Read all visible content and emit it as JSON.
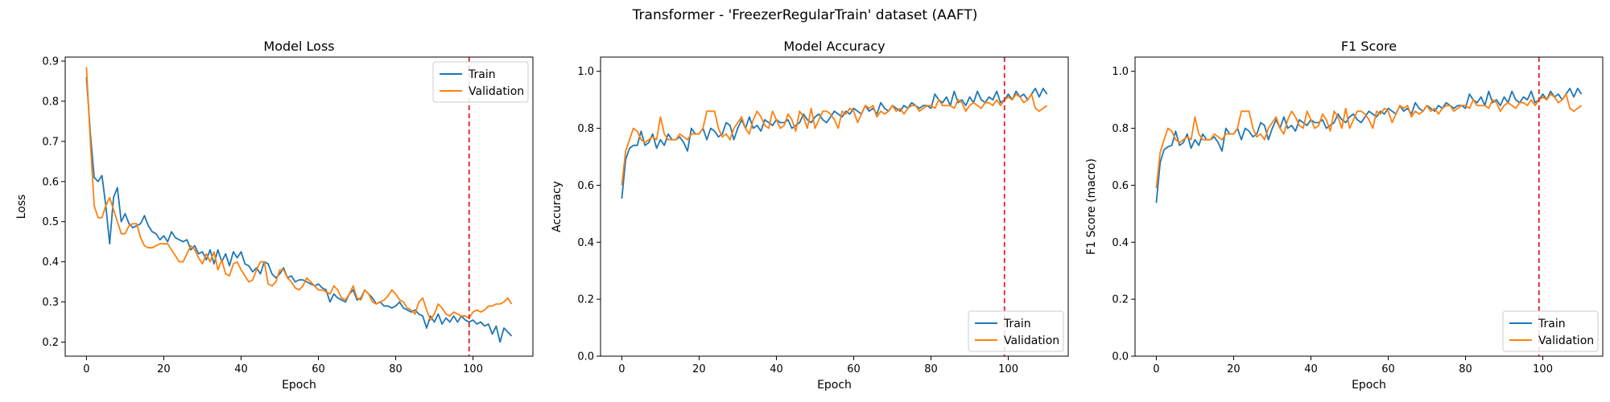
{
  "suptitle": "Transformer - 'FreezerRegularTrain' dataset (AAFT)",
  "colors": {
    "train": "#1f77b4",
    "validation": "#ff7f0e",
    "marker": "#d62728"
  },
  "chart_data": [
    {
      "type": "line",
      "title": "Model Loss",
      "xlabel": "Epoch",
      "ylabel": "Loss",
      "xlim": [
        -5.5,
        115.5
      ],
      "ylim": [
        0.165,
        0.91
      ],
      "xticks": [
        0,
        20,
        40,
        60,
        80,
        100
      ],
      "yticks": [
        0.2,
        0.3,
        0.4,
        0.5,
        0.6,
        0.7,
        0.8,
        0.9
      ],
      "ytick_labels": [
        "0.2",
        "0.3",
        "0.4",
        "0.5",
        "0.6",
        "0.7",
        "0.8",
        "0.9"
      ],
      "vline_x": 99,
      "legend_loc": "upper-right",
      "series": [
        {
          "name": "Train",
          "values": [
            0.86,
            0.72,
            0.61,
            0.6,
            0.615,
            0.54,
            0.445,
            0.56,
            0.585,
            0.5,
            0.52,
            0.495,
            0.485,
            0.49,
            0.495,
            0.515,
            0.49,
            0.475,
            0.47,
            0.455,
            0.465,
            0.45,
            0.475,
            0.46,
            0.455,
            0.45,
            0.455,
            0.43,
            0.44,
            0.42,
            0.425,
            0.405,
            0.43,
            0.395,
            0.43,
            0.4,
            0.42,
            0.39,
            0.425,
            0.41,
            0.425,
            0.395,
            0.39,
            0.375,
            0.385,
            0.37,
            0.4,
            0.395,
            0.37,
            0.36,
            0.37,
            0.385,
            0.36,
            0.365,
            0.35,
            0.355,
            0.355,
            0.35,
            0.345,
            0.34,
            0.345,
            0.335,
            0.33,
            0.3,
            0.32,
            0.31,
            0.305,
            0.3,
            0.32,
            0.33,
            0.305,
            0.31,
            0.33,
            0.32,
            0.31,
            0.295,
            0.3,
            0.29,
            0.29,
            0.285,
            0.29,
            0.3,
            0.285,
            0.28,
            0.275,
            0.28,
            0.27,
            0.265,
            0.235,
            0.265,
            0.25,
            0.27,
            0.245,
            0.26,
            0.25,
            0.265,
            0.25,
            0.265,
            0.255,
            0.25,
            0.255,
            0.245,
            0.25,
            0.24,
            0.245,
            0.22,
            0.24,
            0.2,
            0.235,
            0.225,
            0.215
          ]
        },
        {
          "name": "Validation",
          "values": [
            0.885,
            0.7,
            0.54,
            0.51,
            0.51,
            0.54,
            0.56,
            0.53,
            0.5,
            0.47,
            0.47,
            0.49,
            0.495,
            0.495,
            0.46,
            0.44,
            0.435,
            0.435,
            0.44,
            0.445,
            0.445,
            0.445,
            0.43,
            0.415,
            0.4,
            0.4,
            0.42,
            0.44,
            0.43,
            0.41,
            0.395,
            0.42,
            0.4,
            0.425,
            0.38,
            0.405,
            0.37,
            0.365,
            0.395,
            0.4,
            0.38,
            0.365,
            0.35,
            0.355,
            0.38,
            0.4,
            0.4,
            0.345,
            0.34,
            0.35,
            0.38,
            0.38,
            0.36,
            0.35,
            0.335,
            0.33,
            0.34,
            0.36,
            0.35,
            0.34,
            0.33,
            0.33,
            0.325,
            0.32,
            0.34,
            0.33,
            0.31,
            0.305,
            0.32,
            0.34,
            0.31,
            0.305,
            0.33,
            0.32,
            0.3,
            0.295,
            0.3,
            0.305,
            0.315,
            0.33,
            0.32,
            0.305,
            0.3,
            0.285,
            0.28,
            0.27,
            0.3,
            0.31,
            0.28,
            0.255,
            0.27,
            0.295,
            0.285,
            0.27,
            0.265,
            0.275,
            0.27,
            0.265,
            0.265,
            0.26,
            0.275,
            0.28,
            0.275,
            0.28,
            0.29,
            0.29,
            0.295,
            0.295,
            0.3,
            0.31,
            0.295
          ]
        }
      ]
    },
    {
      "type": "line",
      "title": "Model Accuracy",
      "xlabel": "Epoch",
      "ylabel": "Accuracy",
      "xlim": [
        -5.5,
        115.5
      ],
      "ylim": [
        0.0,
        1.05
      ],
      "xticks": [
        0,
        20,
        40,
        60,
        80,
        100
      ],
      "yticks": [
        0.0,
        0.2,
        0.4,
        0.6,
        0.8,
        1.0
      ],
      "ytick_labels": [
        "0.0",
        "0.2",
        "0.4",
        "0.6",
        "0.8",
        "1.0"
      ],
      "vline_x": 99,
      "legend_loc": "lower-right",
      "series": [
        {
          "name": "Train",
          "values": [
            0.553,
            0.69,
            0.73,
            0.74,
            0.74,
            0.79,
            0.74,
            0.75,
            0.78,
            0.73,
            0.76,
            0.74,
            0.78,
            0.76,
            0.76,
            0.77,
            0.75,
            0.72,
            0.8,
            0.78,
            0.78,
            0.8,
            0.76,
            0.8,
            0.79,
            0.77,
            0.78,
            0.82,
            0.81,
            0.76,
            0.8,
            0.83,
            0.8,
            0.84,
            0.8,
            0.81,
            0.79,
            0.83,
            0.82,
            0.81,
            0.83,
            0.82,
            0.82,
            0.83,
            0.8,
            0.81,
            0.82,
            0.85,
            0.83,
            0.82,
            0.84,
            0.85,
            0.83,
            0.82,
            0.84,
            0.86,
            0.85,
            0.84,
            0.86,
            0.85,
            0.87,
            0.86,
            0.85,
            0.88,
            0.86,
            0.87,
            0.85,
            0.89,
            0.87,
            0.86,
            0.88,
            0.87,
            0.86,
            0.88,
            0.87,
            0.89,
            0.88,
            0.87,
            0.88,
            0.88,
            0.87,
            0.92,
            0.9,
            0.89,
            0.91,
            0.88,
            0.93,
            0.89,
            0.9,
            0.88,
            0.91,
            0.89,
            0.93,
            0.9,
            0.89,
            0.91,
            0.9,
            0.93,
            0.89,
            0.9,
            0.92,
            0.9,
            0.93,
            0.91,
            0.92,
            0.9,
            0.92,
            0.94,
            0.91,
            0.94,
            0.92
          ]
        },
        {
          "name": "Validation",
          "values": [
            0.6,
            0.72,
            0.76,
            0.8,
            0.79,
            0.76,
            0.75,
            0.76,
            0.77,
            0.76,
            0.84,
            0.78,
            0.76,
            0.76,
            0.76,
            0.78,
            0.77,
            0.76,
            0.78,
            0.78,
            0.78,
            0.8,
            0.86,
            0.86,
            0.86,
            0.8,
            0.77,
            0.78,
            0.76,
            0.8,
            0.82,
            0.84,
            0.8,
            0.78,
            0.83,
            0.86,
            0.84,
            0.81,
            0.8,
            0.86,
            0.83,
            0.8,
            0.81,
            0.85,
            0.83,
            0.79,
            0.86,
            0.84,
            0.8,
            0.87,
            0.8,
            0.83,
            0.86,
            0.86,
            0.85,
            0.83,
            0.8,
            0.86,
            0.85,
            0.87,
            0.86,
            0.82,
            0.85,
            0.88,
            0.87,
            0.88,
            0.84,
            0.86,
            0.85,
            0.86,
            0.88,
            0.86,
            0.87,
            0.85,
            0.87,
            0.88,
            0.88,
            0.86,
            0.87,
            0.88,
            0.88,
            0.87,
            0.9,
            0.88,
            0.88,
            0.88,
            0.87,
            0.9,
            0.89,
            0.86,
            0.88,
            0.89,
            0.88,
            0.87,
            0.89,
            0.89,
            0.88,
            0.9,
            0.88,
            0.9,
            0.91,
            0.9,
            0.92,
            0.91,
            0.89,
            0.9,
            0.92,
            0.87,
            0.86,
            0.87,
            0.88
          ]
        }
      ]
    },
    {
      "type": "line",
      "title": "F1 Score",
      "xlabel": "Epoch",
      "ylabel": "F1 Score (macro)",
      "xlim": [
        -5.5,
        115.5
      ],
      "ylim": [
        0.0,
        1.05
      ],
      "xticks": [
        0,
        20,
        40,
        60,
        80,
        100
      ],
      "yticks": [
        0.0,
        0.2,
        0.4,
        0.6,
        0.8,
        1.0
      ],
      "ytick_labels": [
        "0.0",
        "0.2",
        "0.4",
        "0.6",
        "0.8",
        "1.0"
      ],
      "vline_x": 99,
      "legend_loc": "lower-right",
      "series": [
        {
          "name": "Train",
          "values": [
            0.538,
            0.68,
            0.725,
            0.735,
            0.74,
            0.79,
            0.74,
            0.75,
            0.78,
            0.73,
            0.76,
            0.74,
            0.78,
            0.76,
            0.76,
            0.77,
            0.75,
            0.72,
            0.8,
            0.78,
            0.78,
            0.8,
            0.76,
            0.8,
            0.79,
            0.77,
            0.78,
            0.82,
            0.81,
            0.76,
            0.8,
            0.83,
            0.8,
            0.84,
            0.8,
            0.81,
            0.79,
            0.83,
            0.82,
            0.81,
            0.83,
            0.82,
            0.82,
            0.83,
            0.8,
            0.81,
            0.82,
            0.85,
            0.83,
            0.82,
            0.84,
            0.85,
            0.83,
            0.82,
            0.84,
            0.86,
            0.85,
            0.84,
            0.86,
            0.85,
            0.87,
            0.86,
            0.85,
            0.88,
            0.86,
            0.87,
            0.85,
            0.89,
            0.87,
            0.86,
            0.88,
            0.87,
            0.86,
            0.88,
            0.87,
            0.89,
            0.88,
            0.87,
            0.88,
            0.88,
            0.87,
            0.92,
            0.9,
            0.89,
            0.91,
            0.88,
            0.93,
            0.89,
            0.9,
            0.88,
            0.91,
            0.89,
            0.93,
            0.9,
            0.89,
            0.91,
            0.9,
            0.93,
            0.89,
            0.9,
            0.92,
            0.9,
            0.93,
            0.91,
            0.92,
            0.9,
            0.92,
            0.94,
            0.91,
            0.94,
            0.92
          ]
        },
        {
          "name": "Validation",
          "values": [
            0.59,
            0.715,
            0.76,
            0.8,
            0.79,
            0.76,
            0.75,
            0.76,
            0.77,
            0.76,
            0.84,
            0.78,
            0.76,
            0.76,
            0.76,
            0.78,
            0.77,
            0.76,
            0.78,
            0.78,
            0.78,
            0.8,
            0.86,
            0.86,
            0.86,
            0.8,
            0.77,
            0.78,
            0.76,
            0.8,
            0.82,
            0.84,
            0.8,
            0.78,
            0.83,
            0.86,
            0.84,
            0.81,
            0.8,
            0.86,
            0.83,
            0.8,
            0.81,
            0.85,
            0.83,
            0.79,
            0.86,
            0.84,
            0.8,
            0.87,
            0.8,
            0.83,
            0.86,
            0.86,
            0.85,
            0.83,
            0.8,
            0.86,
            0.85,
            0.87,
            0.86,
            0.82,
            0.85,
            0.88,
            0.87,
            0.88,
            0.84,
            0.86,
            0.85,
            0.86,
            0.88,
            0.86,
            0.87,
            0.85,
            0.87,
            0.88,
            0.88,
            0.86,
            0.87,
            0.88,
            0.88,
            0.87,
            0.9,
            0.88,
            0.88,
            0.88,
            0.87,
            0.9,
            0.89,
            0.86,
            0.88,
            0.89,
            0.88,
            0.87,
            0.89,
            0.89,
            0.88,
            0.9,
            0.88,
            0.9,
            0.91,
            0.9,
            0.92,
            0.91,
            0.89,
            0.9,
            0.92,
            0.87,
            0.86,
            0.87,
            0.88
          ]
        }
      ]
    }
  ]
}
